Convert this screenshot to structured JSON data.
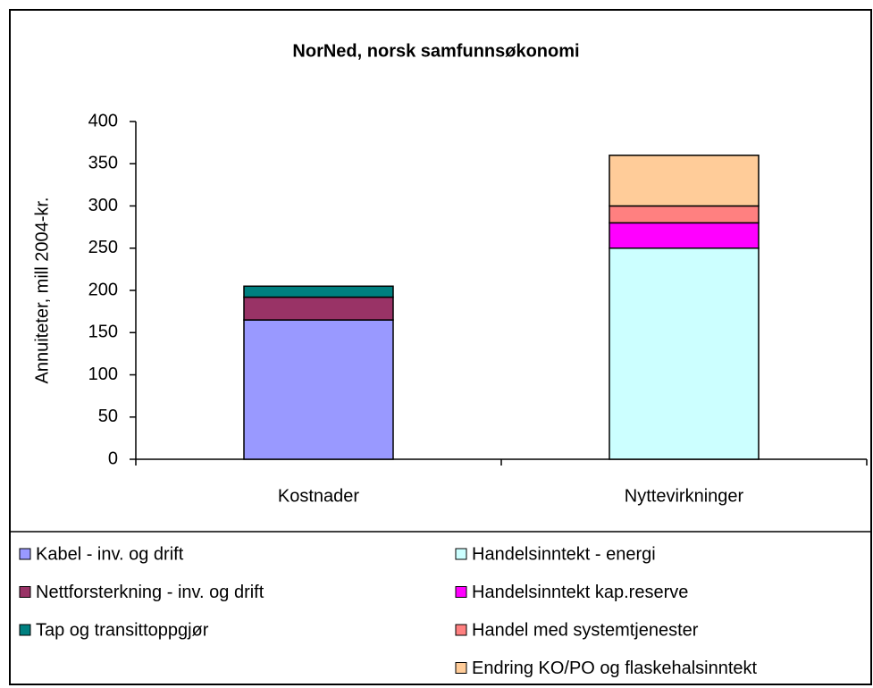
{
  "chart_data": {
    "type": "stacked_bar",
    "title": "NorNed, norsk samfunnsøkonomi",
    "y_label": "Annuiteter, mill 2004-kr.",
    "categories": [
      "Kostnader",
      "Nyttevirkninger"
    ],
    "series": [
      {
        "name": "Kabel - inv. og drift",
        "color": "#9999ff",
        "values": [
          165,
          null
        ]
      },
      {
        "name": "Nettforsterkning - inv. og drift",
        "color": "#993366",
        "values": [
          27,
          null
        ]
      },
      {
        "name": "Tap og transittoppgjør",
        "color": "#008080",
        "values": [
          13,
          null
        ]
      },
      {
        "name": "Handelsinntekt - energi",
        "color": "#ccffff",
        "values": [
          null,
          250
        ]
      },
      {
        "name": "Handelsinntekt kap.reserve",
        "color": "#ff00ff",
        "values": [
          null,
          30
        ]
      },
      {
        "name": "Handel med systemtjenester",
        "color": "#ff8080",
        "values": [
          null,
          20
        ]
      },
      {
        "name": "Endring KO/PO og flaskehalsinntekt",
        "color": "#ffcc99",
        "values": [
          null,
          60
        ]
      }
    ],
    "ylim": [
      0,
      400
    ],
    "yticks": [
      0,
      50,
      100,
      150,
      200,
      250,
      300,
      350,
      400
    ]
  }
}
